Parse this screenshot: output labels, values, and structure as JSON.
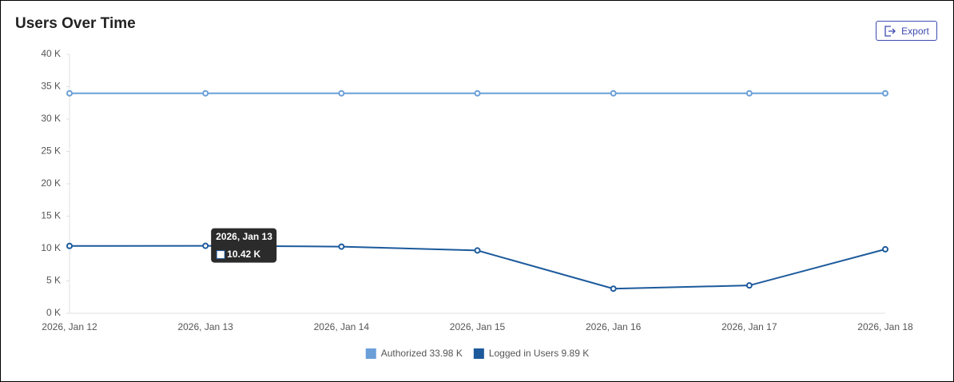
{
  "title": "Users Over Time",
  "export_button": "Export",
  "chart_data": {
    "type": "line",
    "categories": [
      "2026, Jan 12",
      "2026, Jan 13",
      "2026, Jan 14",
      "2026, Jan 15",
      "2026, Jan 16",
      "2026, Jan 17",
      "2026, Jan 18"
    ],
    "ylim": [
      0,
      40000
    ],
    "yticks": [
      {
        "value": 0,
        "label": "0 K"
      },
      {
        "value": 5000,
        "label": "5 K"
      },
      {
        "value": 10000,
        "label": "10 K"
      },
      {
        "value": 15000,
        "label": "15 K"
      },
      {
        "value": 20000,
        "label": "20 K"
      },
      {
        "value": 25000,
        "label": "25 K"
      },
      {
        "value": 30000,
        "label": "30 K"
      },
      {
        "value": 35000,
        "label": "35 K"
      },
      {
        "value": 40000,
        "label": "40 K"
      }
    ],
    "legend": "bottom",
    "series": [
      {
        "name": "Authorized 33.98 K",
        "color": "#6a9fd8",
        "values": [
          33980,
          33980,
          33980,
          33980,
          33980,
          33980,
          33980
        ]
      },
      {
        "name": "Logged in Users 9.89 K",
        "color": "#1c5a9c",
        "values": [
          10400,
          10420,
          10300,
          9700,
          3800,
          4300,
          9890
        ],
        "value_labels": [
          null,
          "10.42 K",
          null,
          null,
          null,
          null,
          null
        ]
      }
    ]
  }
}
